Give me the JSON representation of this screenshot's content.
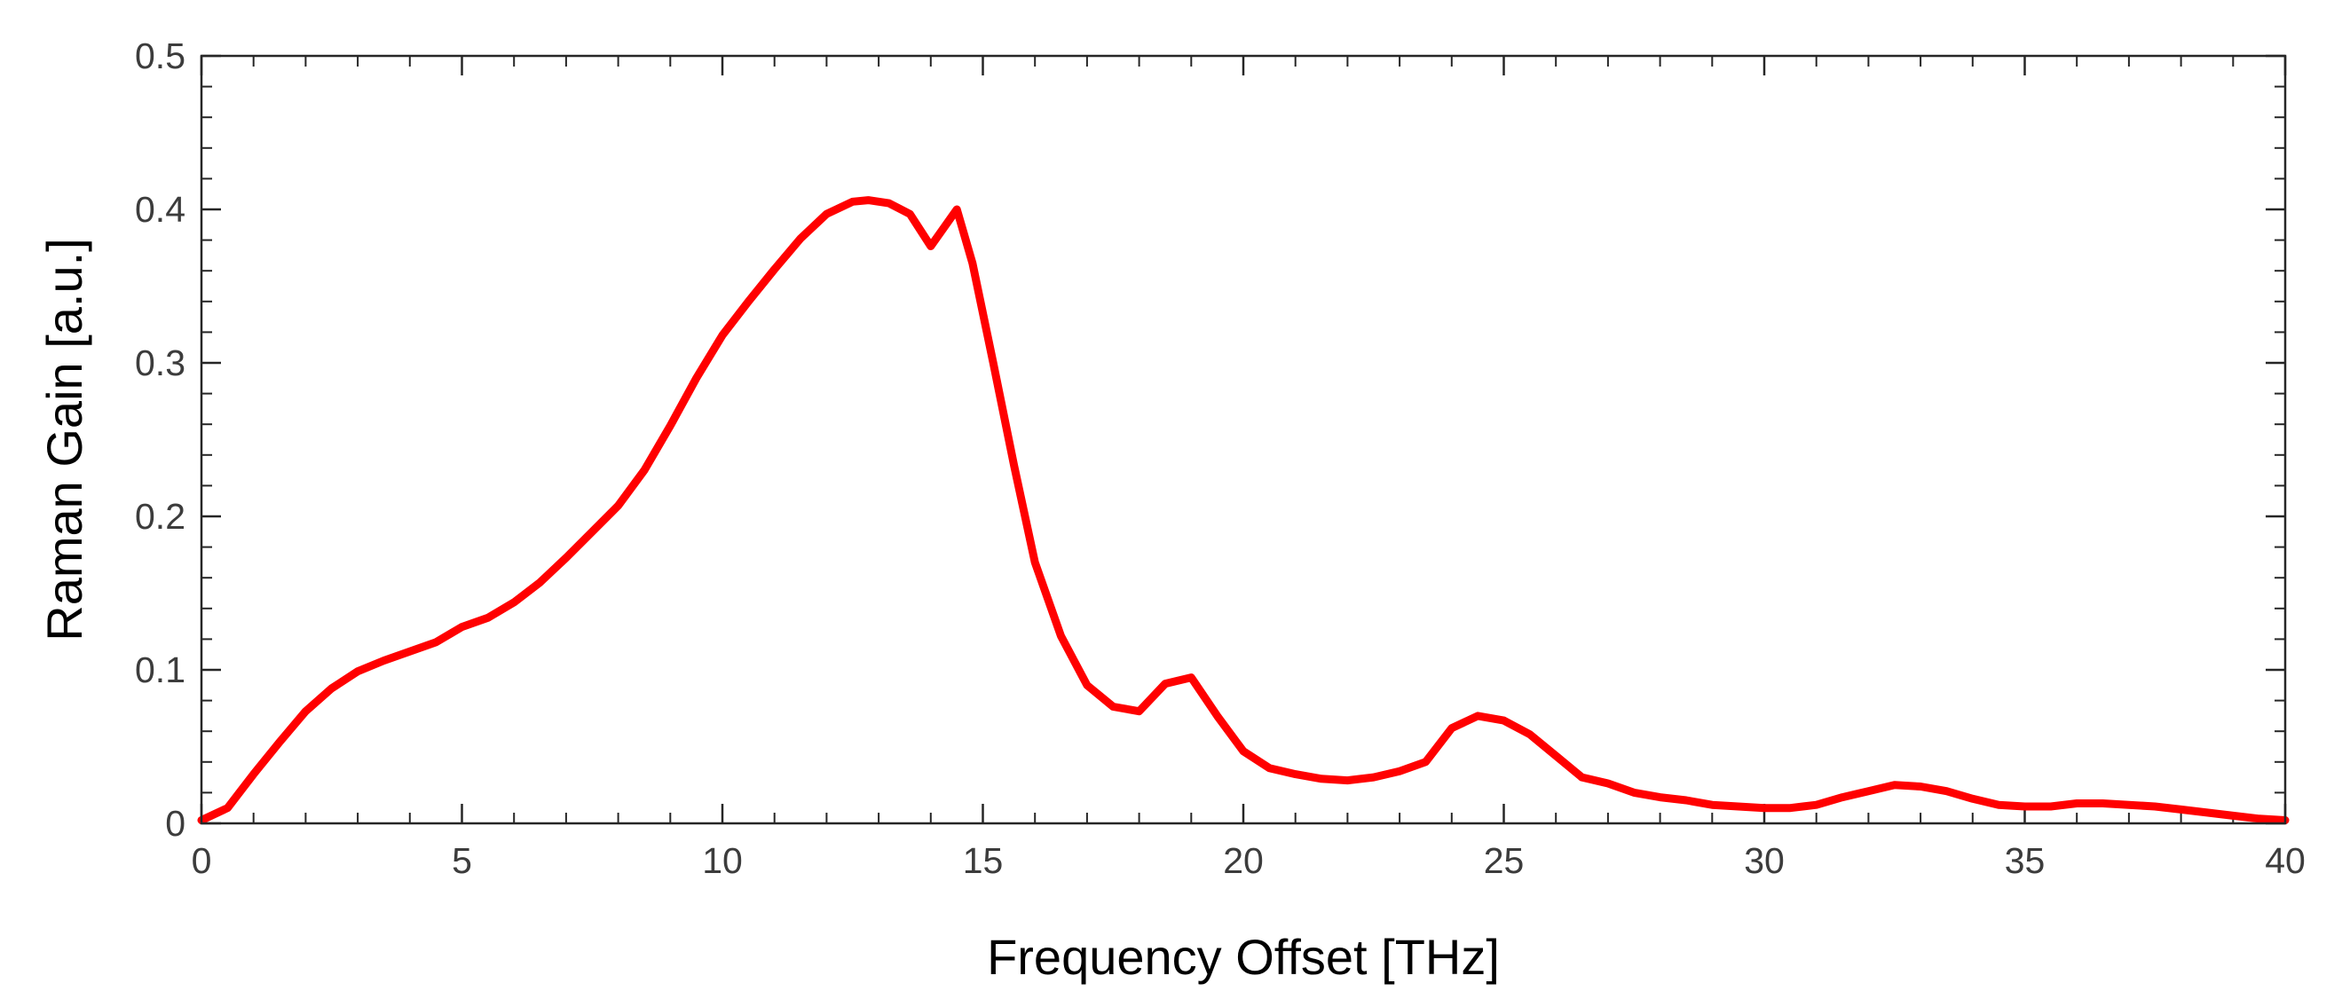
{
  "chart_data": {
    "type": "line",
    "title": "",
    "xlabel": "Frequency Offset [THz]",
    "ylabel": "Raman Gain [a.u.]",
    "xlim": [
      0,
      40
    ],
    "ylim": [
      0,
      0.5
    ],
    "xticks": [
      0,
      5,
      10,
      15,
      20,
      25,
      30,
      35,
      40
    ],
    "xtick_labels": [
      "0",
      "5",
      "10",
      "15",
      "20",
      "25",
      "30",
      "35",
      "40"
    ],
    "yticks": [
      0,
      0.1,
      0.2,
      0.3,
      0.4,
      0.5
    ],
    "ytick_labels": [
      "0",
      "0.1",
      "0.2",
      "0.3",
      "0.4",
      "0.5"
    ],
    "grid": false,
    "box": true,
    "minor_ticks": true,
    "series": [
      {
        "color": "#ff0000",
        "x": [
          0,
          0.5,
          1,
          1.5,
          2,
          2.5,
          3,
          3.5,
          4,
          4.5,
          5,
          5.5,
          6,
          6.5,
          7,
          7.5,
          8,
          8.5,
          9,
          9.5,
          10,
          10.5,
          11,
          11.5,
          12,
          12.5,
          12.8,
          13.2,
          13.6,
          14,
          14.5,
          14.8,
          15.2,
          15.6,
          16,
          16.5,
          17,
          17.5,
          18,
          18.5,
          19,
          19.5,
          20,
          20.5,
          21,
          21.5,
          22,
          22.5,
          23,
          23.5,
          24,
          24.5,
          25,
          25.5,
          26,
          26.5,
          27,
          27.5,
          28,
          28.5,
          29,
          29.5,
          30,
          30.5,
          31,
          31.5,
          32,
          32.5,
          33,
          33.5,
          34,
          34.5,
          35,
          35.5,
          36,
          36.5,
          37,
          37.5,
          38,
          38.5,
          39,
          39.5,
          40
        ],
        "y": [
          0.002,
          0.01,
          0.032,
          0.053,
          0.073,
          0.088,
          0.099,
          0.106,
          0.112,
          0.118,
          0.128,
          0.134,
          0.144,
          0.157,
          0.173,
          0.19,
          0.207,
          0.23,
          0.259,
          0.29,
          0.318,
          0.34,
          0.361,
          0.381,
          0.397,
          0.405,
          0.406,
          0.404,
          0.397,
          0.376,
          0.4,
          0.365,
          0.3,
          0.233,
          0.17,
          0.122,
          0.09,
          0.076,
          0.073,
          0.091,
          0.095,
          0.07,
          0.047,
          0.036,
          0.032,
          0.029,
          0.028,
          0.03,
          0.034,
          0.04,
          0.062,
          0.07,
          0.067,
          0.058,
          0.044,
          0.03,
          0.026,
          0.02,
          0.017,
          0.015,
          0.012,
          0.011,
          0.01,
          0.01,
          0.012,
          0.017,
          0.021,
          0.025,
          0.024,
          0.021,
          0.016,
          0.012,
          0.011,
          0.011,
          0.013,
          0.013,
          0.012,
          0.011,
          0.009,
          0.007,
          0.005,
          0.003,
          0.002
        ]
      }
    ]
  }
}
